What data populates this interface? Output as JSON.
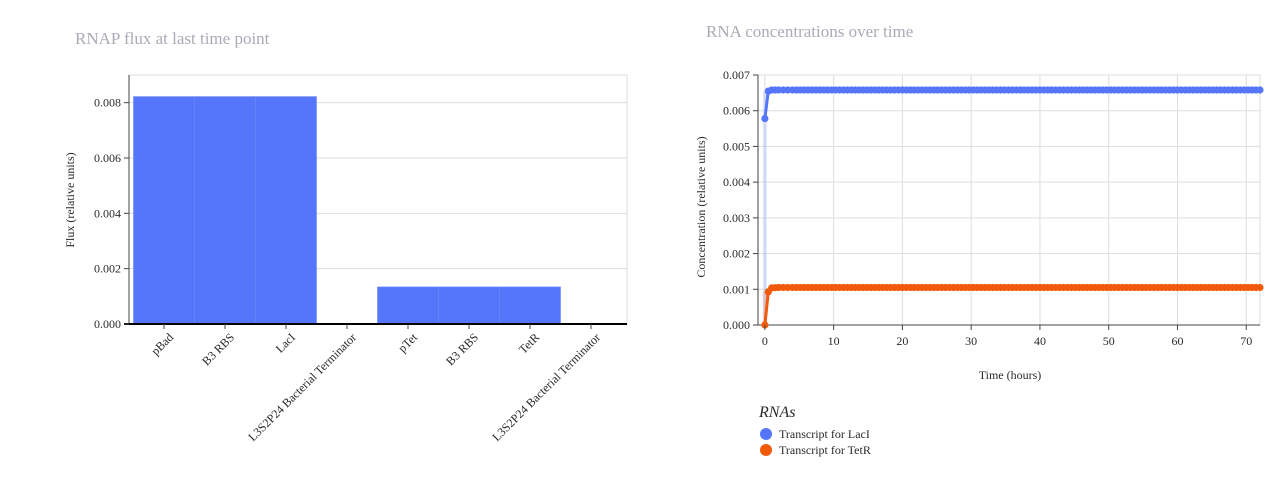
{
  "chart_data": [
    {
      "type": "bar",
      "title": "RNAP flux at last time point",
      "ylabel": "Flux (relative units)",
      "xlabel": "",
      "categories": [
        "pBad",
        "B3 RBS",
        "LacI",
        "L3S2P24 Bacterial Terminator",
        "pTet",
        "B3 RBS",
        "TetR",
        "L3S2P24 Bacterial Terminator"
      ],
      "values": [
        0.00822,
        0.00822,
        0.00822,
        0,
        0.00134,
        0.00134,
        0.00134,
        0
      ],
      "ylim": [
        0,
        0.009
      ],
      "yticks": [
        "0.000",
        "0.002",
        "0.004",
        "0.006",
        "0.008"
      ],
      "color": "#5576fb",
      "grid": true
    },
    {
      "type": "line",
      "title": "RNA concentrations over time",
      "xlabel": "Time (hours)",
      "ylabel": "Concentration (relative units)",
      "xlim": [
        -1,
        72
      ],
      "ylim": [
        0,
        0.007
      ],
      "xticks": [
        "0",
        "10",
        "20",
        "30",
        "40",
        "50",
        "60",
        "70"
      ],
      "yticks": [
        "0.000",
        "0.001",
        "0.002",
        "0.003",
        "0.004",
        "0.005",
        "0.006",
        "0.007"
      ],
      "legend_title": "RNAs",
      "legend_position": "bottom-left",
      "grid": true,
      "series": [
        {
          "name": "Transcript for LacI",
          "color": "#5576fb",
          "x": [
            0,
            0.5,
            1,
            2,
            4,
            8,
            16,
            24,
            36,
            48,
            60,
            72
          ],
          "y": [
            0.00578,
            0.00655,
            0.00658,
            0.00658,
            0.00658,
            0.00658,
            0.00658,
            0.00658,
            0.00658,
            0.00658,
            0.00658,
            0.00658
          ]
        },
        {
          "name": "Transcript for TetR",
          "color": "#f15a0a",
          "x": [
            0,
            0.5,
            1,
            2,
            4,
            8,
            16,
            24,
            36,
            48,
            60,
            72
          ],
          "y": [
            0.0,
            0.00093,
            0.00104,
            0.00105,
            0.00105,
            0.00105,
            0.00105,
            0.00105,
            0.00105,
            0.00105,
            0.00105,
            0.00105
          ]
        }
      ]
    }
  ]
}
